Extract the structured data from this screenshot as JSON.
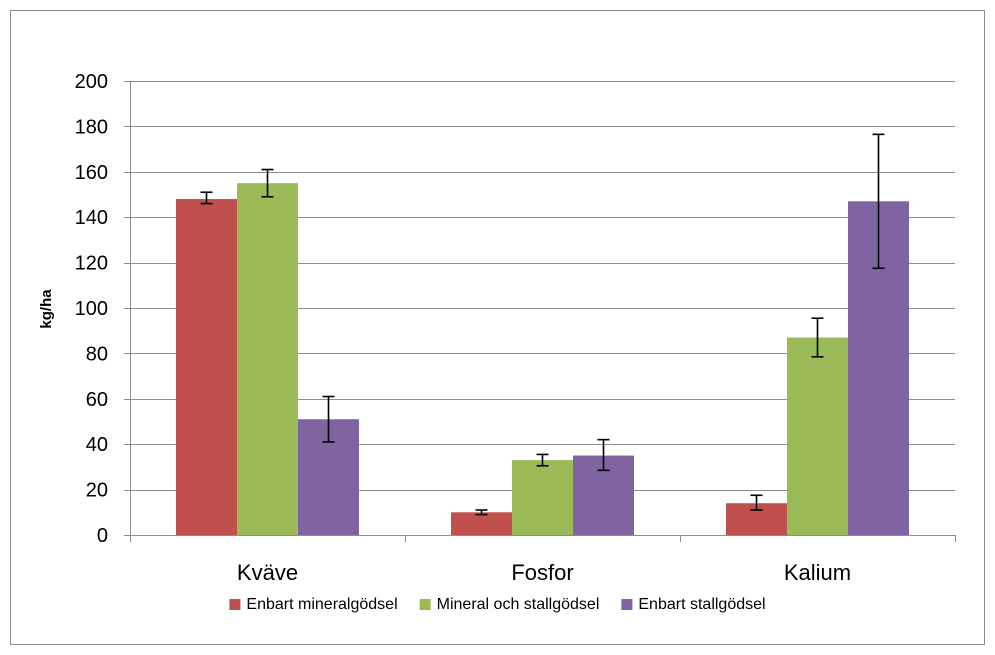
{
  "chart_data": {
    "type": "bar",
    "title": "",
    "xlabel": "",
    "ylabel": "kg/ha",
    "categories": [
      "Kväve",
      "Fosfor",
      "Kalium"
    ],
    "ylim": [
      0,
      200
    ],
    "yticks": [
      0,
      20,
      40,
      60,
      80,
      100,
      120,
      140,
      160,
      180,
      200
    ],
    "grid": true,
    "legend_position": "bottom",
    "series": [
      {
        "name": "Enbart mineralgödsel",
        "color": "#c0504d",
        "values": [
          148,
          10,
          14
        ],
        "error_low": [
          146,
          9,
          11
        ],
        "error_high": [
          151,
          11,
          17.5
        ]
      },
      {
        "name": "Mineral och stallgödsel",
        "color": "#9bbb59",
        "values": [
          155,
          33,
          87
        ],
        "error_low": [
          149,
          30.5,
          78.5
        ],
        "error_high": [
          161,
          35.5,
          95.5
        ]
      },
      {
        "name": "Enbart stallgödsel",
        "color": "#8064a2",
        "values": [
          51,
          35,
          147
        ],
        "error_low": [
          41,
          28.5,
          117.5
        ],
        "error_high": [
          61,
          42,
          176.5
        ]
      }
    ]
  }
}
